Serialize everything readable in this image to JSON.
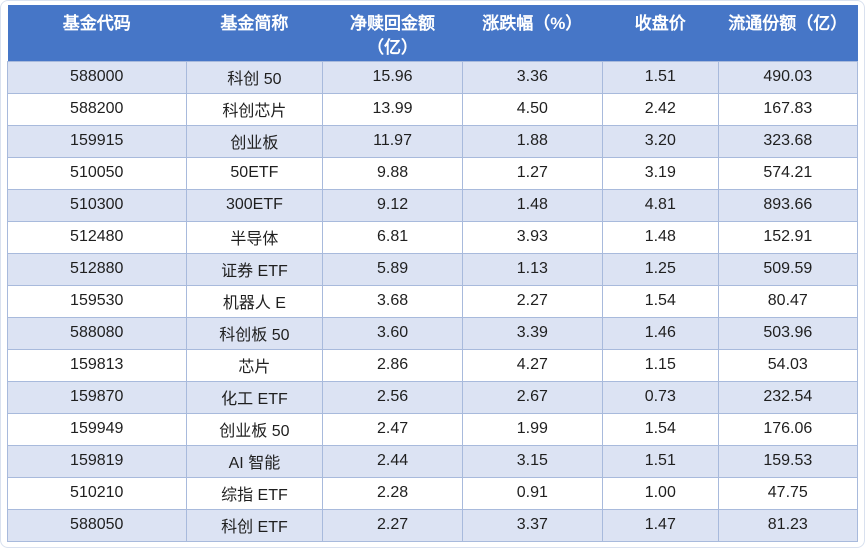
{
  "colors": {
    "header_bg": "#4676C7",
    "header_text": "#FFFFFF",
    "band_bg": "#DCE3F3",
    "row_bg": "#FFFFFF",
    "border": "#A8BADC",
    "cell_text": "#1F1F1F"
  },
  "table": {
    "headers": [
      {
        "label": "基金代码"
      },
      {
        "label": "基金简称"
      },
      {
        "label": "净赎回金额\n（亿）"
      },
      {
        "label": "涨跌幅（%）"
      },
      {
        "label": "收盘价"
      },
      {
        "label": "流通份额（亿）"
      }
    ],
    "rows": [
      {
        "code": "588000",
        "name": "科创 50",
        "net_redemption": "15.96",
        "change_pct": "3.36",
        "close": "1.51",
        "shares": "490.03"
      },
      {
        "code": "588200",
        "name": "科创芯片",
        "net_redemption": "13.99",
        "change_pct": "4.50",
        "close": "2.42",
        "shares": "167.83"
      },
      {
        "code": "159915",
        "name": "创业板",
        "net_redemption": "11.97",
        "change_pct": "1.88",
        "close": "3.20",
        "shares": "323.68"
      },
      {
        "code": "510050",
        "name": "50ETF",
        "net_redemption": "9.88",
        "change_pct": "1.27",
        "close": "3.19",
        "shares": "574.21"
      },
      {
        "code": "510300",
        "name": "300ETF",
        "net_redemption": "9.12",
        "change_pct": "1.48",
        "close": "4.81",
        "shares": "893.66"
      },
      {
        "code": "512480",
        "name": "半导体",
        "net_redemption": "6.81",
        "change_pct": "3.93",
        "close": "1.48",
        "shares": "152.91"
      },
      {
        "code": "512880",
        "name": "证券 ETF",
        "net_redemption": "5.89",
        "change_pct": "1.13",
        "close": "1.25",
        "shares": "509.59"
      },
      {
        "code": "159530",
        "name": "机器人 E",
        "net_redemption": "3.68",
        "change_pct": "2.27",
        "close": "1.54",
        "shares": "80.47"
      },
      {
        "code": "588080",
        "name": "科创板 50",
        "net_redemption": "3.60",
        "change_pct": "3.39",
        "close": "1.46",
        "shares": "503.96"
      },
      {
        "code": "159813",
        "name": "芯片",
        "net_redemption": "2.86",
        "change_pct": "4.27",
        "close": "1.15",
        "shares": "54.03"
      },
      {
        "code": "159870",
        "name": "化工 ETF",
        "net_redemption": "2.56",
        "change_pct": "2.67",
        "close": "0.73",
        "shares": "232.54"
      },
      {
        "code": "159949",
        "name": "创业板 50",
        "net_redemption": "2.47",
        "change_pct": "1.99",
        "close": "1.54",
        "shares": "176.06"
      },
      {
        "code": "159819",
        "name": "AI 智能",
        "net_redemption": "2.44",
        "change_pct": "3.15",
        "close": "1.51",
        "shares": "159.53"
      },
      {
        "code": "510210",
        "name": "综指 ETF",
        "net_redemption": "2.28",
        "change_pct": "0.91",
        "close": "1.00",
        "shares": "47.75"
      },
      {
        "code": "588050",
        "name": "科创 ETF",
        "net_redemption": "2.27",
        "change_pct": "3.37",
        "close": "1.47",
        "shares": "81.23"
      }
    ]
  },
  "chart_data": {
    "type": "table",
    "title": "",
    "columns": [
      "基金代码",
      "基金简称",
      "净赎回金额（亿）",
      "涨跌幅（%）",
      "收盘价",
      "流通份额（亿）"
    ],
    "rows": [
      [
        "588000",
        "科创 50",
        15.96,
        3.36,
        1.51,
        490.03
      ],
      [
        "588200",
        "科创芯片",
        13.99,
        4.5,
        2.42,
        167.83
      ],
      [
        "159915",
        "创业板",
        11.97,
        1.88,
        3.2,
        323.68
      ],
      [
        "510050",
        "50ETF",
        9.88,
        1.27,
        3.19,
        574.21
      ],
      [
        "510300",
        "300ETF",
        9.12,
        1.48,
        4.81,
        893.66
      ],
      [
        "512480",
        "半导体",
        6.81,
        3.93,
        1.48,
        152.91
      ],
      [
        "512880",
        "证券 ETF",
        5.89,
        1.13,
        1.25,
        509.59
      ],
      [
        "159530",
        "机器人 E",
        3.68,
        2.27,
        1.54,
        80.47
      ],
      [
        "588080",
        "科创板 50",
        3.6,
        3.39,
        1.46,
        503.96
      ],
      [
        "159813",
        "芯片",
        2.86,
        4.27,
        1.15,
        54.03
      ],
      [
        "159870",
        "化工 ETF",
        2.56,
        2.67,
        0.73,
        232.54
      ],
      [
        "159949",
        "创业板 50",
        2.47,
        1.99,
        1.54,
        176.06
      ],
      [
        "159819",
        "AI 智能",
        2.44,
        3.15,
        1.51,
        159.53
      ],
      [
        "510210",
        "综指 ETF",
        2.28,
        0.91,
        1.0,
        47.75
      ],
      [
        "588050",
        "科创 ETF",
        2.27,
        3.37,
        1.47,
        81.23
      ]
    ],
    "layout_hints": {
      "banded_rows": true,
      "header_style": "solid-blue",
      "first_banded_row_index": 0
    }
  }
}
